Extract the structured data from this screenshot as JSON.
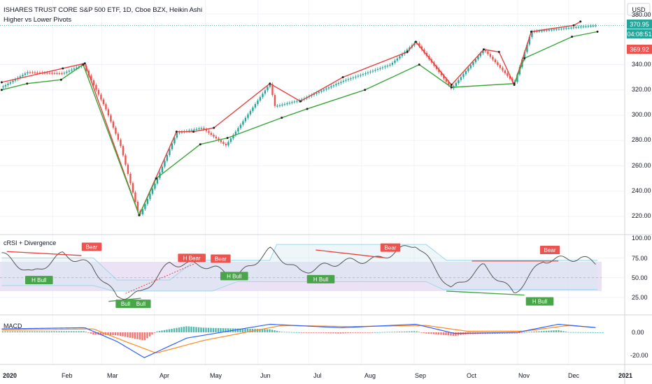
{
  "header": {
    "title": "ISHARES TRUST CORE S&P 500 ETF, 1D, Cboe BZX, Heikin Ashi",
    "indicator": "Higher vs Lower Pivots"
  },
  "colors": {
    "up": "#26a69a",
    "down": "#ef5350",
    "pivot_high": "#e8403f",
    "pivot_low": "#3aa53a",
    "crsi_line": "#555555",
    "band": "#9fd6e8",
    "macd": "#2962ff",
    "signal": "#ff8a1f"
  },
  "price_axis": {
    "currency": "USD",
    "ticks": [
      "380.00",
      "340.00",
      "320.00",
      "300.00",
      "280.00",
      "260.00",
      "240.00",
      "220.00"
    ],
    "tags": {
      "last": "370.95",
      "countdown": "04:08:51",
      "low": "369.92"
    }
  },
  "crsi_panel": {
    "title": "cRSI + Divergence",
    "ticks": [
      "100.00",
      "75.00",
      "50.00",
      "25.00"
    ],
    "labels": [
      "Bear",
      "H Bull",
      "Bull",
      "Bull",
      "H Bear",
      "Bear",
      "H Bull",
      "H Bull",
      "Bear",
      "Bear",
      "H Bull"
    ]
  },
  "macd_panel": {
    "title": "MACD",
    "ticks": [
      "0.00",
      "-20.00"
    ]
  },
  "time_axis": {
    "labels": [
      "2020",
      "Feb",
      "Mar",
      "Apr",
      "May",
      "Jun",
      "Jul",
      "Aug",
      "Sep",
      "Oct",
      "Nov",
      "Dec",
      "2021"
    ]
  },
  "chart_data": [
    {
      "type": "line",
      "title": "ISHARES TRUST CORE S&P 500 ETF, 1D, Cboe BZX, Heikin Ashi",
      "subtitle": "Higher vs Lower Pivots",
      "ylim": [
        210,
        380
      ],
      "series": [
        {
          "name": "",
          "x": [
            "2020-01-02",
            "2020-01-17",
            "2020-02-07",
            "2020-02-19",
            "2020-03-03",
            "2020-03-12",
            "2020-03-23",
            "2020-04-02",
            "2020-04-14",
            "2020-04-29",
            "2020-05-13",
            "2020-06-08",
            "2020-06-11",
            "2020-06-26",
            "2020-07-21",
            "2020-08-18",
            "2020-09-02",
            "2020-09-23",
            "2020-10-12",
            "2020-10-30",
            "2020-11-09",
            "2020-12-08",
            "2020-12-18"
          ],
          "values": [
            322,
            334,
            333,
            340,
            306,
            276,
            220,
            248,
            286,
            290,
            276,
            325,
            307,
            312,
            327,
            340,
            358,
            321,
            352,
            325,
            366,
            370,
            371
          ]
        }
      ]
    },
    {
      "type": "line",
      "title": "cRSI + Divergence",
      "ylim": [
        10,
        100
      ],
      "series": [
        {
          "name": "",
          "x": [
            "2020-01-02",
            "2020-01-20",
            "2020-02-07",
            "2020-02-24",
            "2020-03-10",
            "2020-03-24",
            "2020-04-10",
            "2020-04-30",
            "2020-05-20",
            "2020-06-08",
            "2020-06-26",
            "2020-07-20",
            "2020-08-10",
            "2020-09-02",
            "2020-09-23",
            "2020-10-12",
            "2020-10-30",
            "2020-11-16",
            "2020-12-08",
            "2020-12-18"
          ],
          "values": [
            80,
            55,
            80,
            65,
            25,
            30,
            68,
            66,
            52,
            85,
            57,
            70,
            73,
            93,
            35,
            65,
            30,
            72,
            75,
            68
          ]
        }
      ]
    },
    {
      "type": "line",
      "title": "MACD",
      "ylim": [
        -25,
        12
      ],
      "series": [
        {
          "name": "",
          "x": [
            "2020-01-02",
            "2020-02-20",
            "2020-03-10",
            "2020-03-26",
            "2020-04-20",
            "2020-06-08",
            "2020-07-20",
            "2020-09-02",
            "2020-09-25",
            "2020-11-01",
            "2020-11-25",
            "2020-12-18"
          ],
          "values": [
            3,
            4,
            -8,
            -22,
            -5,
            7,
            4,
            7,
            -1,
            0,
            7,
            4
          ]
        },
        {
          "name": "",
          "x": [
            "2020-01-02",
            "2020-02-25",
            "2020-03-15",
            "2020-04-02",
            "2020-04-30",
            "2020-06-15",
            "2020-07-25",
            "2020-09-08",
            "2020-10-02",
            "2020-11-05",
            "2020-12-01",
            "2020-12-18"
          ],
          "values": [
            2,
            3,
            -8,
            -18,
            -7,
            6,
            5,
            6,
            1,
            1,
            6,
            4
          ]
        }
      ]
    }
  ]
}
